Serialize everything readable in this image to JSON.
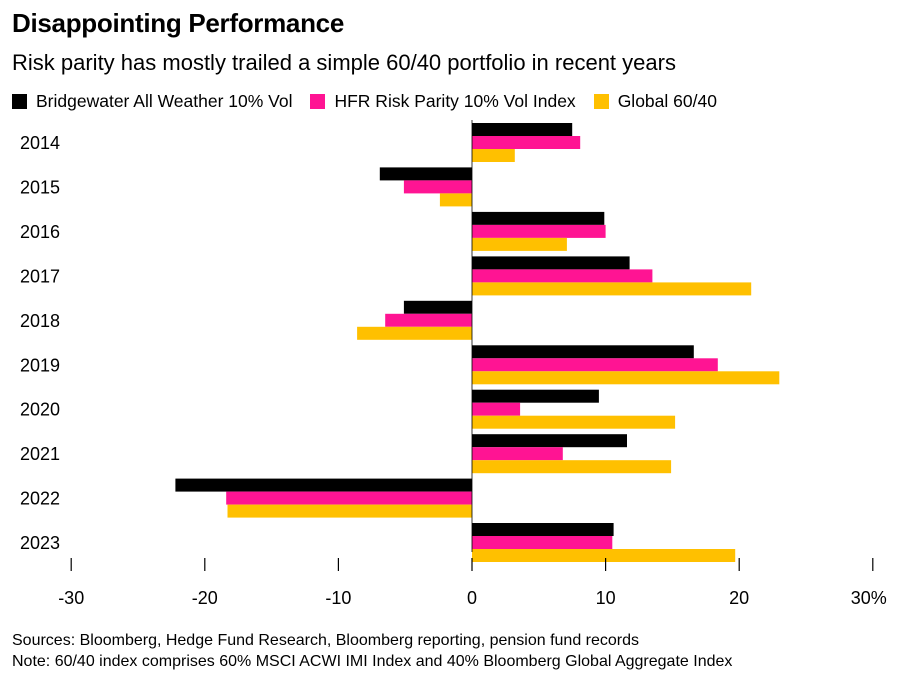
{
  "title": "Disappointing Performance",
  "subtitle": "Risk parity has mostly trailed a simple 60/40 portfolio in recent years",
  "footer": {
    "sources": "Sources: Bloomberg, Hedge Fund Research, Bloomberg reporting, pension fund records",
    "note": "Note: 60/40 index comprises 60% MSCI ACWI IMI Index and 40% Bloomberg Global Aggregate Index"
  },
  "chart_data": {
    "type": "bar",
    "orientation": "horizontal",
    "title": "Disappointing Performance",
    "subtitle": "Risk parity has mostly trailed a simple 60/40 portfolio in recent years",
    "categories": [
      "2014",
      "2015",
      "2016",
      "2017",
      "2018",
      "2019",
      "2020",
      "2021",
      "2022",
      "2023"
    ],
    "series": [
      {
        "name": "Bridgewater All Weather 10% Vol",
        "color": "#000000",
        "values": [
          7.5,
          -6.9,
          9.9,
          11.8,
          -5.1,
          16.6,
          9.5,
          11.6,
          -22.2,
          10.6
        ]
      },
      {
        "name": "HFR Risk Parity 10% Vol Index",
        "color": "#ff1493",
        "values": [
          8.1,
          -5.1,
          10.0,
          13.5,
          -6.5,
          18.4,
          3.6,
          6.8,
          -18.4,
          10.5
        ]
      },
      {
        "name": "Global 60/40",
        "color": "#ffc000",
        "values": [
          3.2,
          -2.4,
          7.1,
          20.9,
          -8.6,
          23.0,
          15.2,
          14.9,
          -18.3,
          19.7
        ]
      }
    ],
    "xlim": [
      -30,
      30
    ],
    "xticks": [
      "-30",
      "-20",
      "-10",
      "0",
      "10",
      "20",
      "30%"
    ],
    "grid": false,
    "legend_position": "top-left"
  }
}
